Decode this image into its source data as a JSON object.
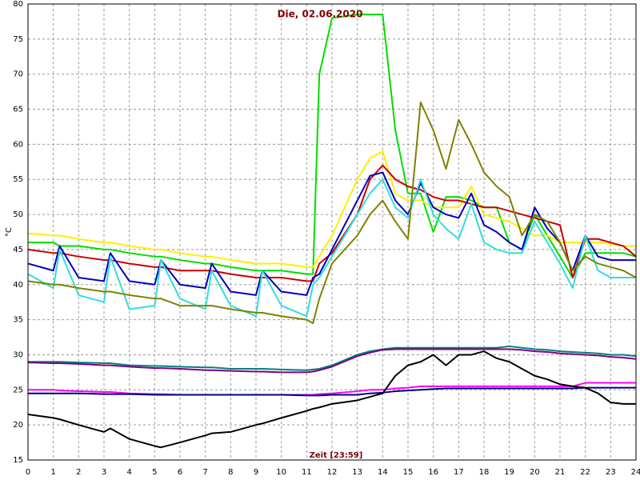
{
  "chart_data": {
    "type": "line",
    "title": "Die, 02.06.2020",
    "xlabel": "Zeit [23:59]",
    "ylabel": "°C",
    "x": [
      0,
      1,
      1.25,
      2,
      3,
      3.25,
      4,
      5,
      5.25,
      6,
      7,
      7.25,
      8,
      9,
      9.25,
      10,
      11,
      11.25,
      11.5,
      12,
      13,
      13.5,
      14,
      14.5,
      15,
      15.5,
      16,
      16.5,
      17,
      17.5,
      18,
      18.5,
      19,
      19.5,
      20,
      20.5,
      21,
      21.5,
      22,
      22.5,
      23,
      23.5,
      24
    ],
    "xlim": [
      0,
      24
    ],
    "xticks": [
      0,
      1,
      2,
      3,
      4,
      5,
      6,
      7,
      8,
      9,
      10,
      11,
      12,
      13,
      14,
      15,
      16,
      17,
      18,
      19,
      20,
      21,
      22,
      23,
      24
    ],
    "ylim": [
      15,
      80
    ],
    "yticks": [
      15,
      20,
      25,
      30,
      35,
      40,
      45,
      50,
      55,
      60,
      65,
      70,
      75,
      80
    ],
    "grid": true,
    "series": [
      {
        "color": "#00dd00",
        "values": [
          46,
          46,
          45.5,
          45.5,
          45,
          45,
          44.5,
          44,
          44,
          43.5,
          43,
          43,
          42.5,
          42,
          42,
          42,
          41.5,
          41.5,
          70,
          78,
          78.5,
          78.5,
          78.5,
          62,
          53,
          53,
          47.5,
          52.5,
          52.5,
          52,
          51,
          51,
          46,
          45,
          50,
          47,
          44,
          41,
          44.5,
          44.5,
          44.5,
          44.5,
          44
        ]
      },
      {
        "color": "#ffee00",
        "values": [
          47.3,
          47,
          47,
          46.5,
          46,
          46,
          45.5,
          45,
          45,
          44.5,
          44,
          44,
          43.5,
          43,
          43,
          43,
          42.5,
          42.5,
          44,
          47,
          55,
          58,
          59,
          53,
          52,
          52,
          51,
          51,
          51,
          54,
          50,
          49.5,
          49,
          48,
          47,
          47,
          46,
          46,
          46,
          46,
          45.8,
          45.5,
          45.5
        ]
      },
      {
        "color": "#cc0000",
        "values": [
          45,
          44.5,
          44.5,
          44,
          43.5,
          43.5,
          43,
          42.5,
          42.5,
          42,
          42,
          42,
          41.5,
          41,
          41,
          41,
          40.5,
          40.5,
          43,
          44.5,
          50,
          55,
          57,
          55,
          54,
          53.5,
          52.5,
          52,
          52,
          51.5,
          51,
          51,
          50.5,
          50,
          49.5,
          49,
          48.5,
          41,
          46.5,
          46.5,
          46,
          45.5,
          44
        ]
      },
      {
        "color": "#0000c0",
        "values": [
          43,
          42,
          45.5,
          41,
          40.5,
          44.5,
          40.5,
          40,
          43.5,
          40,
          39.5,
          43,
          39,
          38.5,
          42,
          39,
          38.5,
          41,
          41.5,
          45,
          52,
          55.5,
          56,
          52,
          50,
          54.5,
          51,
          50,
          49.5,
          53,
          48.5,
          47.5,
          46,
          45,
          51,
          48,
          46,
          42,
          47,
          44,
          43.5,
          43.5,
          43.5
        ]
      },
      {
        "color": "#33dddd",
        "values": [
          41.5,
          39.5,
          45,
          38.5,
          37.5,
          44,
          36.5,
          37,
          43.5,
          38,
          36.5,
          42,
          37,
          35.5,
          42,
          37,
          35.5,
          40,
          41,
          44,
          50,
          53,
          55,
          51,
          49.5,
          55,
          50,
          48,
          46.5,
          51.5,
          46,
          45,
          44.5,
          44.5,
          49,
          46,
          43,
          39.5,
          47,
          42,
          41,
          41,
          41
        ]
      },
      {
        "color": "#808000",
        "values": [
          40.5,
          40,
          40,
          39.5,
          39,
          39,
          38.5,
          38,
          38,
          37,
          37,
          37,
          36.5,
          36,
          36,
          35.5,
          35,
          34.5,
          38,
          43,
          47,
          50,
          52,
          49,
          46.5,
          66,
          62,
          56.5,
          63.5,
          60,
          56,
          54,
          52.5,
          47,
          50,
          49,
          46,
          42,
          44,
          43,
          42.5,
          42,
          41
        ]
      },
      {
        "color": "#008080",
        "values": [
          29,
          29,
          29,
          28.9,
          28.8,
          28.8,
          28.5,
          28.4,
          28.4,
          28.3,
          28.2,
          28.2,
          28,
          28,
          28,
          27.9,
          27.8,
          27.9,
          28,
          28.5,
          30,
          30.5,
          30.8,
          31,
          31,
          31,
          31,
          31,
          31,
          31,
          31,
          31,
          31.2,
          31,
          30.8,
          30.7,
          30.5,
          30.4,
          30.3,
          30.2,
          30,
          30,
          29.8
        ]
      },
      {
        "color": "#800080",
        "values": [
          28.9,
          28.8,
          28.8,
          28.7,
          28.5,
          28.5,
          28.3,
          28.1,
          28.1,
          28,
          27.8,
          27.8,
          27.7,
          27.6,
          27.6,
          27.5,
          27.5,
          27.6,
          27.8,
          28.3,
          29.8,
          30.3,
          30.7,
          30.8,
          30.8,
          30.8,
          30.8,
          30.8,
          30.8,
          30.8,
          30.8,
          30.8,
          30.8,
          30.7,
          30.5,
          30.4,
          30.2,
          30.1,
          30,
          29.9,
          29.7,
          29.6,
          29.4
        ]
      },
      {
        "color": "#ff00ff",
        "values": [
          25,
          25,
          24.9,
          24.8,
          24.7,
          24.7,
          24.5,
          24.4,
          24.4,
          24.3,
          24.3,
          24.3,
          24.3,
          24.3,
          24.3,
          24.3,
          24.3,
          24.3,
          24.4,
          24.5,
          24.8,
          25,
          25,
          25.2,
          25.3,
          25.5,
          25.5,
          25.5,
          25.5,
          25.5,
          25.5,
          25.5,
          25.5,
          25.5,
          25.5,
          25.5,
          25.5,
          25.5,
          26,
          26,
          26,
          26,
          26
        ]
      },
      {
        "color": "#000080",
        "values": [
          24.5,
          24.5,
          24.5,
          24.5,
          24.4,
          24.4,
          24.4,
          24.3,
          24.3,
          24.3,
          24.3,
          24.3,
          24.3,
          24.3,
          24.3,
          24.3,
          24.2,
          24.2,
          24.2,
          24.3,
          24.3,
          24.5,
          24.6,
          24.8,
          24.9,
          25,
          25.1,
          25.2,
          25.2,
          25.2,
          25.2,
          25.2,
          25.2,
          25.2,
          25.2,
          25.2,
          25.2,
          25.2,
          25.3,
          25.3,
          25.3,
          25.3,
          25.3
        ]
      },
      {
        "color": "#000000",
        "values": [
          21.5,
          21,
          20.8,
          20,
          19,
          19.5,
          18,
          17,
          16.8,
          17.5,
          18.5,
          18.8,
          19,
          20,
          20.2,
          21,
          22,
          22.3,
          22.5,
          23,
          23.5,
          24,
          24.5,
          27,
          28.5,
          29,
          30,
          28.5,
          30,
          30,
          30.5,
          29.5,
          29,
          28,
          27,
          26.5,
          25.8,
          25.5,
          25.3,
          24.5,
          23.2,
          23,
          23
        ]
      }
    ]
  }
}
